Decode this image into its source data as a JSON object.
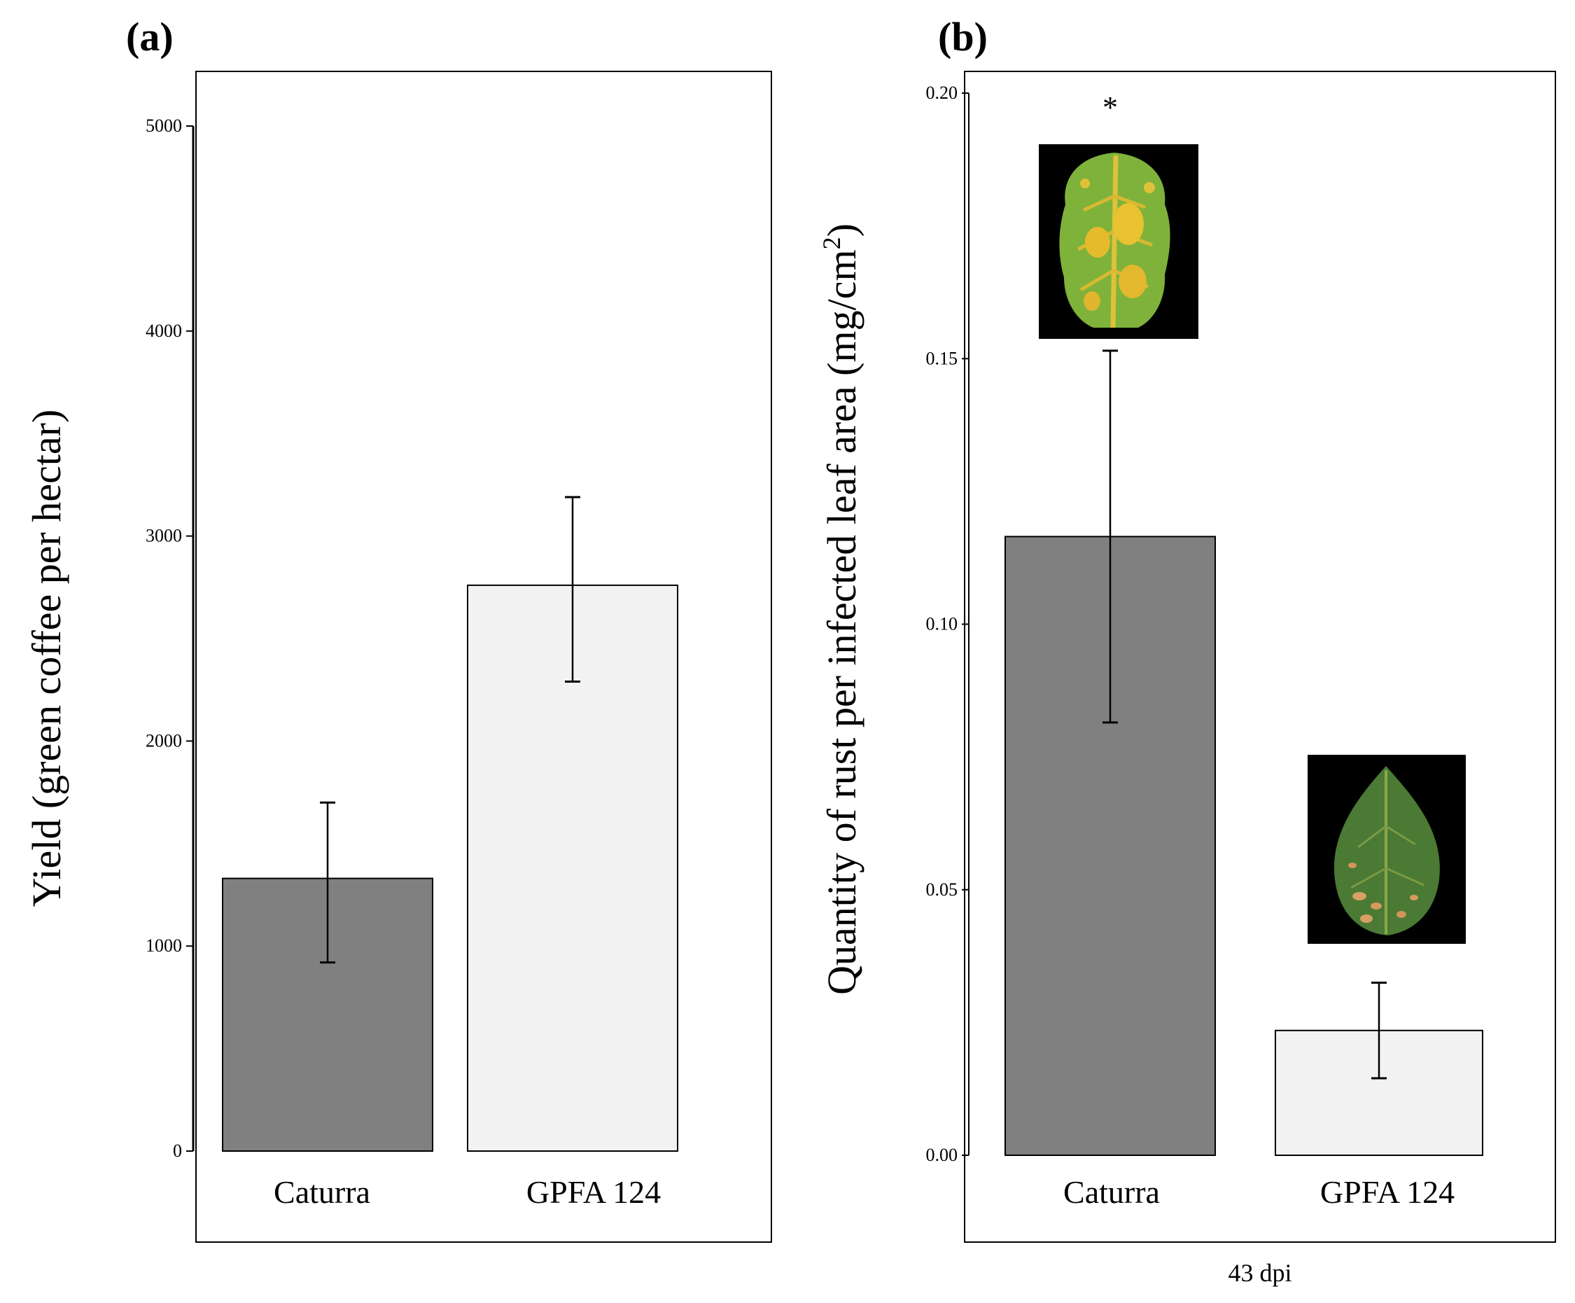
{
  "chart_data": [
    {
      "panel": "(a)",
      "type": "bar",
      "categories": [
        "Caturra",
        "GPFA 124"
      ],
      "values": [
        1330,
        2760
      ],
      "error_low": [
        920,
        2290
      ],
      "error_high": [
        1700,
        3190
      ],
      "bar_colors": [
        "#808080",
        "#f2f2f2"
      ],
      "ylabel": "Yield (green coffee per hectar)",
      "xlabel": "",
      "ylim": [
        0,
        5000
      ],
      "yticks": [
        0,
        1000,
        2000,
        3000,
        4000,
        5000
      ],
      "ytick_labels": [
        "0",
        "1000",
        "2000",
        "3000",
        "4000",
        "5000"
      ]
    },
    {
      "panel": "(b)",
      "type": "bar",
      "categories": [
        "Caturra",
        "GPFA 124"
      ],
      "values": [
        0.1165,
        0.0235
      ],
      "error_low": [
        0.0815,
        0.0145
      ],
      "error_high": [
        0.1515,
        0.0325
      ],
      "bar_colors": [
        "#808080",
        "#f2f2f2"
      ],
      "ylabel": "Quantity of rust per infected leaf area (mg/cm",
      "ylabel_superscript": "2",
      "ylabel_close": ")",
      "xlabel": "43 dpi",
      "ylim": [
        0,
        0.2
      ],
      "yticks": [
        0,
        0.05,
        0.1,
        0.15,
        0.2
      ],
      "ytick_labels": [
        "0.00",
        "0.05",
        "0.10",
        "0.15",
        "0.20"
      ],
      "annotation": "*",
      "annotation_category": "Caturra",
      "annotation_value": 0.198,
      "leaf_images": [
        "yellow-rust-infected-leaf",
        "green-leaf-with-lesions"
      ]
    }
  ]
}
